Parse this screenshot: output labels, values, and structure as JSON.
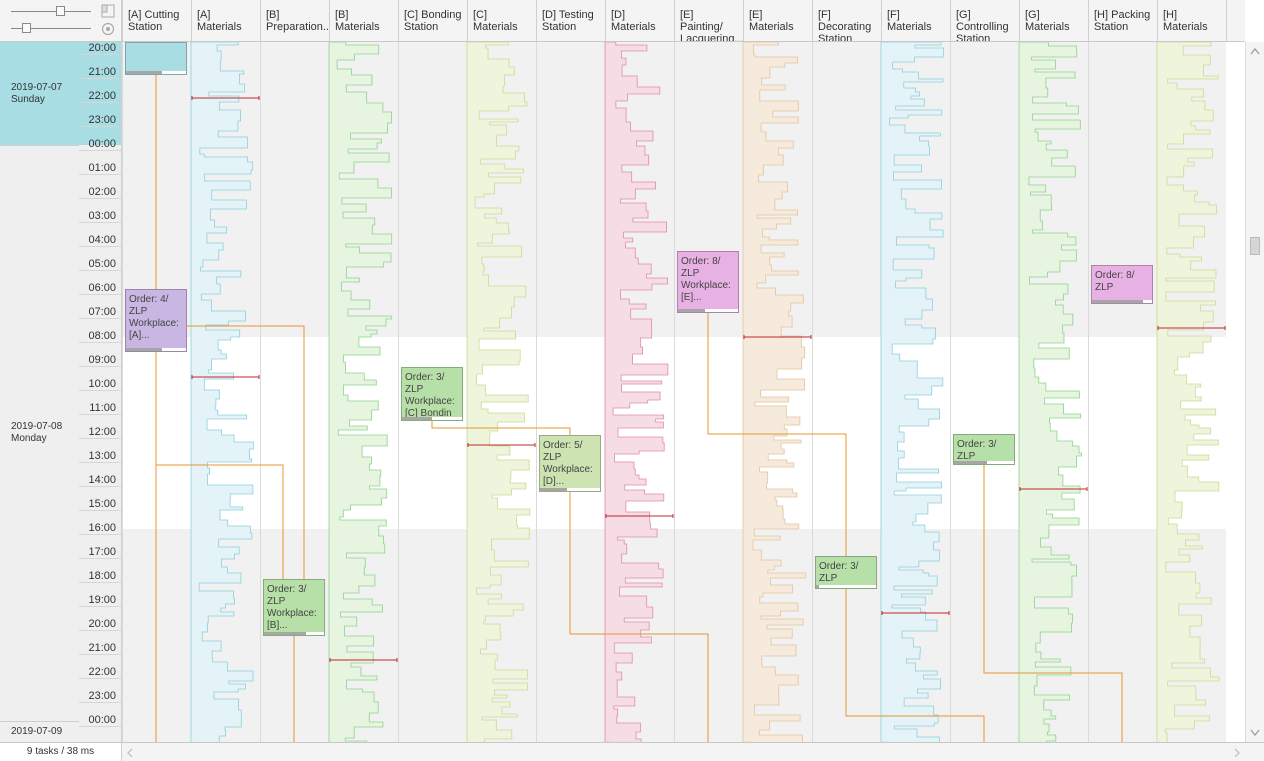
{
  "status": {
    "tasks": "9 tasks / 38 ms"
  },
  "colors": {
    "cutting": "#a8dde4",
    "cutting_line": "#7cc8d4",
    "materials_blue": "#e4f3f7",
    "materials_blue_line": "#8cd0dc",
    "materials_green": "#e6f4e0",
    "materials_green_line": "#8cd48c",
    "materials_yellow": "#eff4dc",
    "materials_yellow_line": "#c8dc94",
    "materials_pink": "#f6dde5",
    "materials_pink_line": "#e08ca8",
    "materials_orange": "#f6eadc",
    "materials_orange_line": "#e4c49c",
    "task_purple": "#c9b6e3",
    "task_green": "#b6e0a8",
    "task_green2": "#cde3b1",
    "task_pink": "#e8b1e3",
    "link_line": "#e8952e",
    "marker_red": "#c0282d"
  },
  "columns": [
    {
      "name": "[A] Cutting Station",
      "line1": "[A] Cutting",
      "line2": "Station"
    },
    {
      "name": "[A] Materials",
      "line1": "[A] Materials",
      "line2": ""
    },
    {
      "name": "[B] Preparation...",
      "line1": "[B]",
      "line2": "Preparation..."
    },
    {
      "name": "[B] Materials",
      "line1": "[B] Materials",
      "line2": ""
    },
    {
      "name": "[C] Bonding Station",
      "line1": "[C] Bonding",
      "line2": "Station"
    },
    {
      "name": "[C] Materials",
      "line1": "[C] Materials",
      "line2": ""
    },
    {
      "name": "[D] Testing Station",
      "line1": "[D] Testing",
      "line2": "Station"
    },
    {
      "name": "[D] Materials",
      "line1": "[D] Materials",
      "line2": ""
    },
    {
      "name": "[E] Painting/ Lacquering...",
      "line1": "[E] Painting/",
      "line2": "Lacquering..."
    },
    {
      "name": "[E] Materials",
      "line1": "[E] Materials",
      "line2": ""
    },
    {
      "name": "[F] Decorating Station",
      "line1": "[F] Decorating",
      "line2": "Station"
    },
    {
      "name": "[F] Materials",
      "line1": "[F] Materials",
      "line2": ""
    },
    {
      "name": "[G] Controlling Station",
      "line1": "[G] Controlling",
      "line2": "Station"
    },
    {
      "name": "[G] Materials",
      "line1": "[G] Materials",
      "line2": ""
    },
    {
      "name": "[H] Packing Station",
      "line1": "[H] Packing",
      "line2": "Station"
    },
    {
      "name": "[H] Materials",
      "line1": "[H] Materials",
      "line2": ""
    }
  ],
  "hours": [
    "20:00",
    "21:00",
    "22:00",
    "23:00",
    "00:00",
    "01:00",
    "02:00",
    "03:00",
    "04:00",
    "05:00",
    "06:00",
    "07:00",
    "08:00",
    "09:00",
    "10:00",
    "11:00",
    "12:00",
    "13:00",
    "14:00",
    "15:00",
    "16:00",
    "17:00",
    "18:00",
    "19:00",
    "20:00",
    "21:00",
    "22:00",
    "23:00",
    "00:00"
  ],
  "days": [
    {
      "date": "2019-07-07",
      "weekday": "Sunday"
    },
    {
      "date": "2019-07-08",
      "weekday": "Monday"
    },
    {
      "date": "2019-07-09",
      "weekday": ""
    }
  ],
  "tasks": [
    {
      "id": "t1",
      "line1": "",
      "line2": "",
      "line3": "",
      "line4": "",
      "progress": 0.6
    },
    {
      "id": "t2",
      "line1": "Order: 4/",
      "line2": "ZLP",
      "line3": "Workplace:",
      "line4": "[A]...",
      "progress": 0.6
    },
    {
      "id": "t3",
      "line1": "Order: 3/",
      "line2": "ZLP",
      "line3": "Workplace:",
      "line4": "[B]...",
      "progress": 0.7
    },
    {
      "id": "t4",
      "line1": "Order: 3/",
      "line2": "ZLP",
      "line3": "Workplace:",
      "line4": "[C] Bondin",
      "progress": 0.5
    },
    {
      "id": "t5",
      "line1": "Order: 5/",
      "line2": "ZLP",
      "line3": "Workplace:",
      "line4": "[D]...",
      "progress": 0.45
    },
    {
      "id": "t6",
      "line1": "Order: 8/",
      "line2": "ZLP",
      "line3": "Workplace:",
      "line4": "[E]...",
      "progress": 0.45
    },
    {
      "id": "t7",
      "line1": "Order: 3/",
      "line2": "ZLP",
      "line3": "",
      "line4": "",
      "progress": 0.05
    },
    {
      "id": "t8",
      "line1": "Order: 3/",
      "line2": "ZLP",
      "line3": "",
      "line4": "",
      "progress": 0.55
    },
    {
      "id": "t9",
      "line1": "Order: 8/",
      "line2": "ZLP",
      "line3": "",
      "line4": "",
      "progress": 0.85
    }
  ]
}
